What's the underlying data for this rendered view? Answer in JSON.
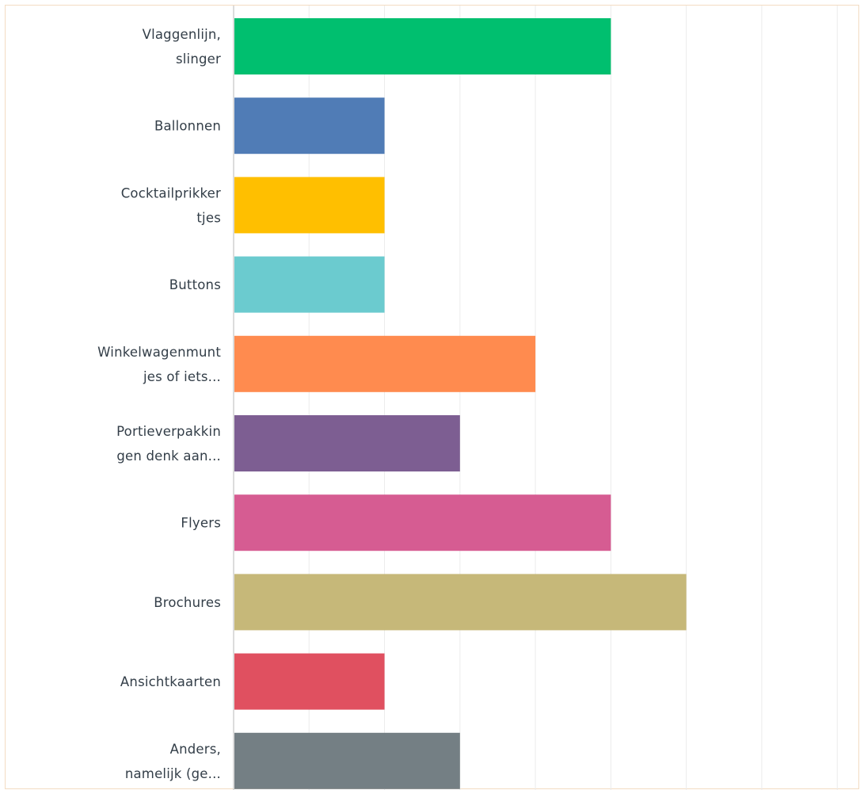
{
  "chart_data": {
    "type": "bar",
    "orientation": "horizontal",
    "categories": [
      [
        "Vlaggenlijn,",
        "slinger"
      ],
      [
        "Ballonnen"
      ],
      [
        "Cocktailprikker",
        "tjes"
      ],
      [
        "Buttons"
      ],
      [
        "Winkelwagenmunt",
        "jes of iets..."
      ],
      [
        "Portieverpakkin",
        "gen denk aan..."
      ],
      [
        "Flyers"
      ],
      [
        "Brochures"
      ],
      [
        "Ansichtkaarten"
      ],
      [
        "Anders,",
        "namelijk (ge..."
      ]
    ],
    "values": [
      5,
      2,
      2,
      2,
      4,
      3,
      5,
      6,
      2,
      3
    ],
    "colors": [
      "#00bf6f",
      "#507cb6",
      "#ffbf00",
      "#6bcbcf",
      "#ff8b4f",
      "#7d5e92",
      "#d65c92",
      "#c6b879",
      "#e05060",
      "#747f84"
    ],
    "xlim": [
      0,
      7.2
    ],
    "grid": true
  }
}
